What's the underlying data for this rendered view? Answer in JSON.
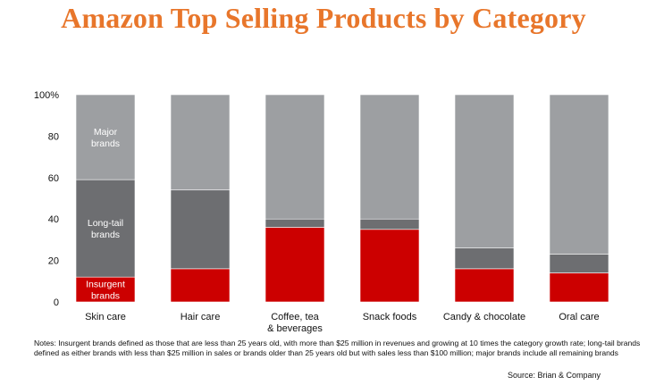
{
  "title": "Amazon Top Selling Products by Category",
  "notes": "Notes: Insurgent brands defined as those that are less than 25 years old, with more than $25 million in revenues and growing at 10 times the category growth rate; long-tail brands defined as either brands with less than $25 million in sales or brands older than 25 years old but with sales less than $100 million; major brands include all remaining brands",
  "source": "Source: Brian & Company",
  "chart_data": {
    "type": "bar",
    "stacked": true,
    "categories": [
      "Skin care",
      "Hair care",
      "Coffee, tea & beverages",
      "Snack foods",
      "Candy & chocolate",
      "Oral care"
    ],
    "category_lines": [
      [
        "Skin care"
      ],
      [
        "Hair care"
      ],
      [
        "Coffee, tea",
        "& beverages"
      ],
      [
        "Snack foods"
      ],
      [
        "Candy & chocolate"
      ],
      [
        "Oral care"
      ]
    ],
    "series": [
      {
        "name": "Insurgent brands",
        "color": "#cc0000",
        "values": [
          12,
          16,
          36,
          35,
          16,
          14
        ]
      },
      {
        "name": "Long-tail brands",
        "color": "#6d6e71",
        "values": [
          47,
          38,
          4,
          5,
          10,
          9
        ]
      },
      {
        "name": "Major brands",
        "color": "#9d9fa2",
        "values": [
          41,
          46,
          60,
          60,
          74,
          77
        ]
      }
    ],
    "series_label_lines": [
      [
        "Insurgent",
        "brands"
      ],
      [
        "Long-tail",
        "brands"
      ],
      [
        "Major",
        "brands"
      ]
    ],
    "ylim": [
      0,
      100
    ],
    "yticks": [
      0,
      20,
      40,
      60,
      80,
      100
    ],
    "ytick_labels": [
      "0",
      "20",
      "40",
      "60",
      "80",
      "100%"
    ],
    "legend": "inline labels on first bar",
    "grid": false
  }
}
